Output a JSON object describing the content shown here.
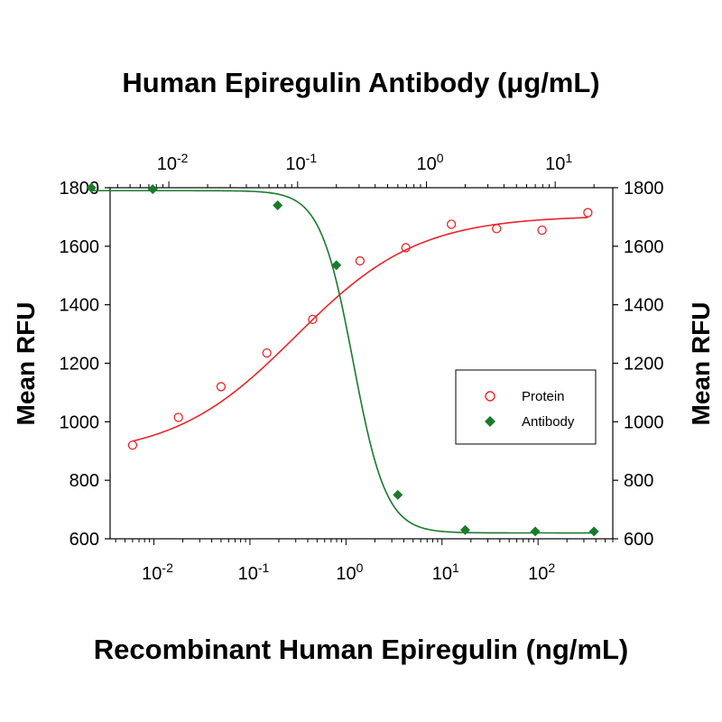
{
  "chart_data": {
    "type": "scatter",
    "title": "Human Epiregulin Antibody (μg/mL)",
    "xlabel": "Recombinant Human Epiregulin (ng/mL)",
    "x2label": "Human Epiregulin Antibody (μg/mL)",
    "ylabel": "Mean RFU",
    "y2label": "Mean RFU",
    "xscale": "log",
    "xlim": [
      0.0035,
      600
    ],
    "x2lim": [
      0.0035,
      28
    ],
    "ylim": [
      600,
      1800
    ],
    "yticks": [
      600,
      800,
      1000,
      1200,
      1400,
      1600,
      1800
    ],
    "xticks": [
      {
        "value": 0.01,
        "base": "10",
        "exp": "-2"
      },
      {
        "value": 0.1,
        "base": "10",
        "exp": "-1"
      },
      {
        "value": 1,
        "base": "10",
        "exp": "0"
      },
      {
        "value": 10,
        "base": "10",
        "exp": "1"
      },
      {
        "value": 100,
        "base": "10",
        "exp": "2"
      }
    ],
    "x2ticks": [
      {
        "value": 0.01,
        "base": "10",
        "exp": "-2"
      },
      {
        "value": 0.1,
        "base": "10",
        "exp": "-1"
      },
      {
        "value": 1,
        "base": "10",
        "exp": "0"
      },
      {
        "value": 10,
        "base": "10",
        "exp": "1"
      }
    ],
    "grid": false,
    "legend_position": "center-right",
    "series": [
      {
        "name": "Protein",
        "axis": "bottom",
        "marker": "open-circle",
        "color": "#e8262b",
        "x": [
          0.006,
          0.018,
          0.05,
          0.15,
          0.45,
          1.4,
          4.2,
          12.5,
          37,
          110,
          330
        ],
        "y": [
          920,
          1015,
          1120,
          1235,
          1350,
          1550,
          1595,
          1675,
          1660,
          1655,
          1715
        ],
        "fit": {
          "bottom": 880,
          "top": 1705,
          "ec50": 0.3,
          "hill": 0.68
        }
      },
      {
        "name": "Antibody",
        "axis": "top",
        "marker": "filled-diamond",
        "color": "#1a7a2c",
        "x": [
          0.0025,
          0.0075,
          0.07,
          0.2,
          0.6,
          2,
          7,
          20
        ],
        "y": [
          1800,
          1795,
          1740,
          1535,
          750,
          630,
          625,
          625
        ],
        "fit": {
          "bottom": 620,
          "top": 1790,
          "ec50": 0.27,
          "hill": 3.4
        }
      }
    ]
  }
}
